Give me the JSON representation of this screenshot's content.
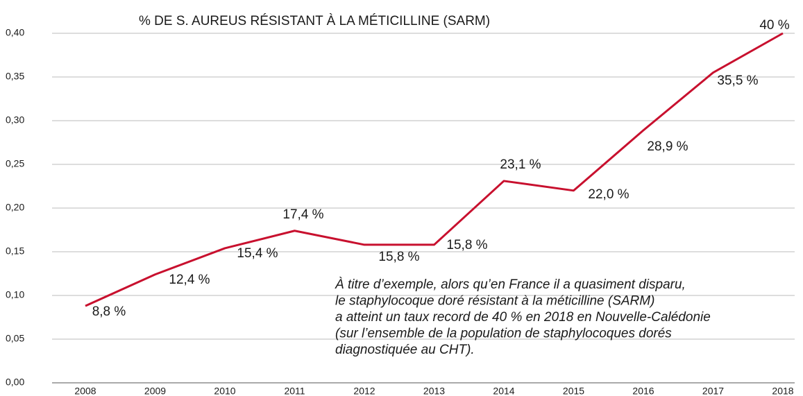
{
  "chart_data": {
    "type": "line",
    "title": "% DE S. AUREUS RÉSISTANT À LA MÉTICILLINE (SARM)",
    "categories": [
      "2008",
      "2009",
      "2010",
      "2011",
      "2012",
      "2013",
      "2014",
      "2015",
      "2016",
      "2017",
      "2018"
    ],
    "series": [
      {
        "name": "SARM",
        "color": "#c8102e",
        "values": [
          0.088,
          0.124,
          0.154,
          0.174,
          0.158,
          0.158,
          0.231,
          0.22,
          0.289,
          0.355,
          0.4
        ],
        "value_labels": [
          "8,8 %",
          "12,4 %",
          "15,4 %",
          "17,4 %",
          "15,8 %",
          "15,8 %",
          "23,1 %",
          "22,0 %",
          "28,9 %",
          "35,5 %",
          "40 %"
        ]
      }
    ],
    "ylim": [
      0,
      0.4
    ],
    "yticks": [
      {
        "value": 0,
        "label": "0,00"
      },
      {
        "value": 0.05,
        "label": "0,05"
      },
      {
        "value": 0.1,
        "label": "0,10"
      },
      {
        "value": 0.15,
        "label": "0,15"
      },
      {
        "value": 0.2,
        "label": "0,20"
      },
      {
        "value": 0.25,
        "label": "0,25"
      },
      {
        "value": 0.3,
        "label": "0,30"
      },
      {
        "value": 0.35,
        "label": "0,35"
      },
      {
        "value": 0.4,
        "label": "0,40"
      }
    ],
    "grid": true,
    "annotation": [
      "À titre d’exemple, alors qu’en France il a quasiment disparu,",
      "le staphylocoque doré résistant à la méticilline (SARM)",
      "a atteint un taux record de 40 % en 2018 en Nouvelle-Calédonie",
      "(sur l’ensemble de la population de staphylocoques dorés",
      "diagnostiquée au CHT)."
    ]
  }
}
